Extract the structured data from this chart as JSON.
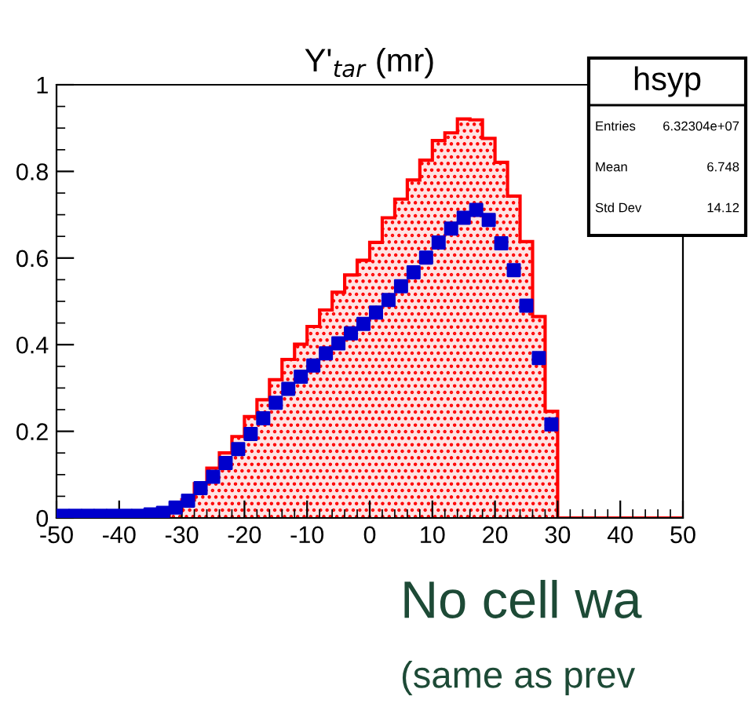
{
  "chart_data": {
    "type": "histogram",
    "title": "Y'$_{tar}$ (mr)",
    "bins": [
      -50,
      -48,
      -46,
      -44,
      -42,
      -40,
      -38,
      -36,
      -34,
      -32,
      -30,
      -28,
      -26,
      -24,
      -22,
      -20,
      -18,
      -16,
      -14,
      -12,
      -10,
      -8,
      -6,
      -4,
      -2,
      0,
      2,
      4,
      6,
      8,
      10,
      12,
      14,
      16,
      18,
      20,
      22,
      24,
      26,
      28,
      30,
      32,
      34,
      36,
      38,
      40,
      42,
      44,
      46,
      48,
      50
    ],
    "series": [
      {
        "color": "#ff0000",
        "values": [
          0.002,
          0.002,
          0.002,
          0.002,
          0.002,
          0.002,
          0.002,
          0.002,
          0.002,
          0.017,
          0.042,
          0.079,
          0.115,
          0.15,
          0.188,
          0.234,
          0.273,
          0.319,
          0.366,
          0.401,
          0.442,
          0.48,
          0.521,
          0.561,
          0.595,
          0.636,
          0.693,
          0.736,
          0.78,
          0.826,
          0.871,
          0.889,
          0.921,
          0.919,
          0.876,
          0.821,
          0.743,
          0.638,
          0.465,
          0.246,
          0,
          0,
          0,
          0,
          0,
          0,
          0,
          0,
          0,
          0
        ]
      },
      {
        "type": "scatter",
        "color": "#0000cc",
        "x": [
          -49,
          -47,
          -45,
          -43,
          -41,
          -39,
          -37,
          -35,
          -33,
          -31,
          -29,
          -27,
          -25,
          -23,
          -21,
          -19,
          -17,
          -15,
          -13,
          -11,
          -9,
          -7,
          -5,
          -3,
          -1,
          1,
          3,
          5,
          7,
          9,
          11,
          13,
          15,
          17,
          19,
          21,
          23,
          25,
          27,
          29
        ],
        "values": [
          0.005,
          0.005,
          0.005,
          0.005,
          0.005,
          0.005,
          0.005,
          0.008,
          0.012,
          0.024,
          0.04,
          0.069,
          0.095,
          0.127,
          0.159,
          0.194,
          0.23,
          0.266,
          0.298,
          0.326,
          0.352,
          0.38,
          0.403,
          0.426,
          0.448,
          0.474,
          0.503,
          0.535,
          0.567,
          0.601,
          0.636,
          0.668,
          0.693,
          0.711,
          0.688,
          0.634,
          0.572,
          0.49,
          0.369,
          0.216
        ]
      }
    ],
    "marker": "square",
    "xlim": [
      -50,
      50
    ],
    "xticks": [
      -50,
      -40,
      -30,
      -20,
      -10,
      0,
      10,
      20,
      30,
      40,
      50
    ],
    "ylim": [
      0,
      1
    ],
    "yticks": [
      0,
      0.2,
      0.4,
      0.6,
      0.8,
      1
    ],
    "grid": false,
    "legend": false,
    "annotations": [
      "hsyp",
      "Entries",
      "6.32304e+07",
      "Mean",
      "6.748",
      "Std Dev",
      "14.12",
      "No cell wa",
      "(same as prev"
    ]
  }
}
